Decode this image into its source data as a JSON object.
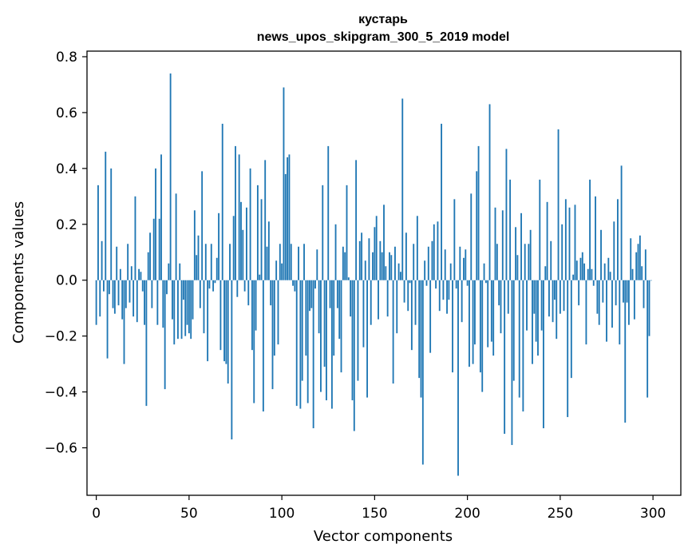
{
  "chart_data": {
    "type": "bar",
    "title_line1": "кустарь",
    "title_line2": "news_upos_skipgram_300_5_2019 model",
    "xlabel": "Vector components",
    "ylabel": "Components values",
    "xlim": [
      -5,
      315
    ],
    "ylim": [
      -0.77,
      0.82
    ],
    "xticks": [
      0,
      50,
      100,
      150,
      200,
      250,
      300
    ],
    "xtick_labels": [
      "0",
      "50",
      "100",
      "150",
      "200",
      "250",
      "300"
    ],
    "yticks": [
      -0.6,
      -0.4,
      -0.2,
      0.0,
      0.2,
      0.4,
      0.6,
      0.8
    ],
    "ytick_labels": [
      "−0.6",
      "−0.4",
      "−0.2",
      "0.0",
      "0.2",
      "0.4",
      "0.6",
      "0.8"
    ],
    "bar_color": "#1f77b4",
    "values": [
      -0.16,
      0.34,
      -0.13,
      0.14,
      -0.04,
      0.46,
      -0.28,
      -0.05,
      0.4,
      -0.1,
      -0.12,
      0.12,
      -0.09,
      0.04,
      -0.14,
      -0.3,
      -0.1,
      0.13,
      -0.08,
      0.05,
      -0.13,
      0.3,
      -0.15,
      0.04,
      0.03,
      -0.04,
      -0.16,
      -0.45,
      0.1,
      0.17,
      -0.1,
      0.22,
      0.4,
      -0.16,
      0.22,
      0.45,
      -0.17,
      -0.39,
      -0.05,
      0.06,
      0.74,
      -0.14,
      -0.23,
      0.31,
      -0.21,
      0.06,
      -0.21,
      -0.07,
      -0.2,
      -0.16,
      -0.19,
      -0.21,
      -0.14,
      0.25,
      0.09,
      0.16,
      -0.1,
      0.39,
      -0.19,
      0.13,
      -0.29,
      -0.03,
      0.13,
      -0.04,
      -0.01,
      0.08,
      0.24,
      -0.25,
      0.56,
      -0.29,
      -0.3,
      -0.37,
      0.13,
      -0.57,
      0.23,
      0.48,
      -0.06,
      0.45,
      0.28,
      0.18,
      -0.04,
      0.26,
      -0.09,
      0.4,
      -0.25,
      -0.44,
      -0.18,
      0.34,
      0.02,
      0.29,
      -0.47,
      0.43,
      0.12,
      0.21,
      -0.09,
      -0.39,
      -0.27,
      0.07,
      -0.23,
      0.13,
      0.06,
      0.69,
      0.38,
      0.44,
      0.45,
      0.13,
      -0.02,
      -0.04,
      -0.45,
      0.12,
      -0.46,
      -0.36,
      0.13,
      -0.27,
      -0.44,
      -0.11,
      -0.1,
      -0.53,
      -0.03,
      0.11,
      -0.19,
      -0.4,
      0.34,
      -0.31,
      -0.43,
      0.48,
      -0.1,
      -0.46,
      -0.27,
      0.2,
      -0.1,
      -0.21,
      -0.33,
      0.12,
      0.1,
      0.34,
      0.01,
      -0.13,
      -0.43,
      -0.54,
      0.43,
      -0.36,
      0.14,
      0.17,
      -0.24,
      0.07,
      -0.42,
      0.15,
      -0.16,
      0.1,
      0.19,
      0.23,
      -0.14,
      0.14,
      0.1,
      0.27,
      0.05,
      -0.13,
      0.1,
      0.09,
      -0.37,
      0.12,
      -0.19,
      0.06,
      0.03,
      0.65,
      -0.08,
      0.17,
      -0.11,
      -0.01,
      -0.25,
      0.13,
      -0.16,
      0.23,
      -0.35,
      -0.42,
      -0.66,
      0.07,
      -0.02,
      0.12,
      -0.26,
      0.14,
      0.2,
      -0.03,
      0.21,
      -0.11,
      0.56,
      -0.07,
      0.11,
      -0.12,
      -0.07,
      0.06,
      -0.33,
      0.29,
      -0.03,
      -0.7,
      0.12,
      -0.15,
      0.08,
      0.11,
      -0.02,
      -0.31,
      0.31,
      -0.3,
      -0.23,
      0.39,
      0.48,
      -0.33,
      -0.4,
      0.06,
      -0.01,
      -0.24,
      0.63,
      -0.22,
      -0.27,
      0.26,
      0.13,
      -0.09,
      -0.19,
      0.25,
      -0.55,
      0.47,
      -0.12,
      0.36,
      -0.59,
      -0.36,
      0.19,
      0.09,
      -0.42,
      0.24,
      -0.47,
      0.13,
      -0.18,
      0.13,
      0.18,
      -0.3,
      -0.12,
      -0.22,
      -0.27,
      0.36,
      -0.18,
      -0.53,
      0.05,
      0.28,
      -0.13,
      0.14,
      -0.15,
      -0.07,
      -0.21,
      0.54,
      -0.12,
      0.2,
      -0.11,
      0.29,
      -0.49,
      0.26,
      -0.35,
      0.02,
      0.27,
      0.07,
      -0.09,
      0.08,
      0.1,
      0.06,
      -0.23,
      0.04,
      0.36,
      0.04,
      -0.02,
      0.3,
      -0.12,
      -0.16,
      0.18,
      -0.08,
      0.06,
      -0.22,
      0.08,
      0.03,
      -0.17,
      0.21,
      -0.09,
      0.29,
      -0.23,
      0.41,
      -0.08,
      -0.51,
      -0.08,
      -0.16,
      0.15,
      0.04,
      -0.14,
      0.1,
      0.13,
      0.16,
      0.05,
      -0.1,
      0.11,
      -0.42,
      -0.2,
      0.0
    ]
  }
}
